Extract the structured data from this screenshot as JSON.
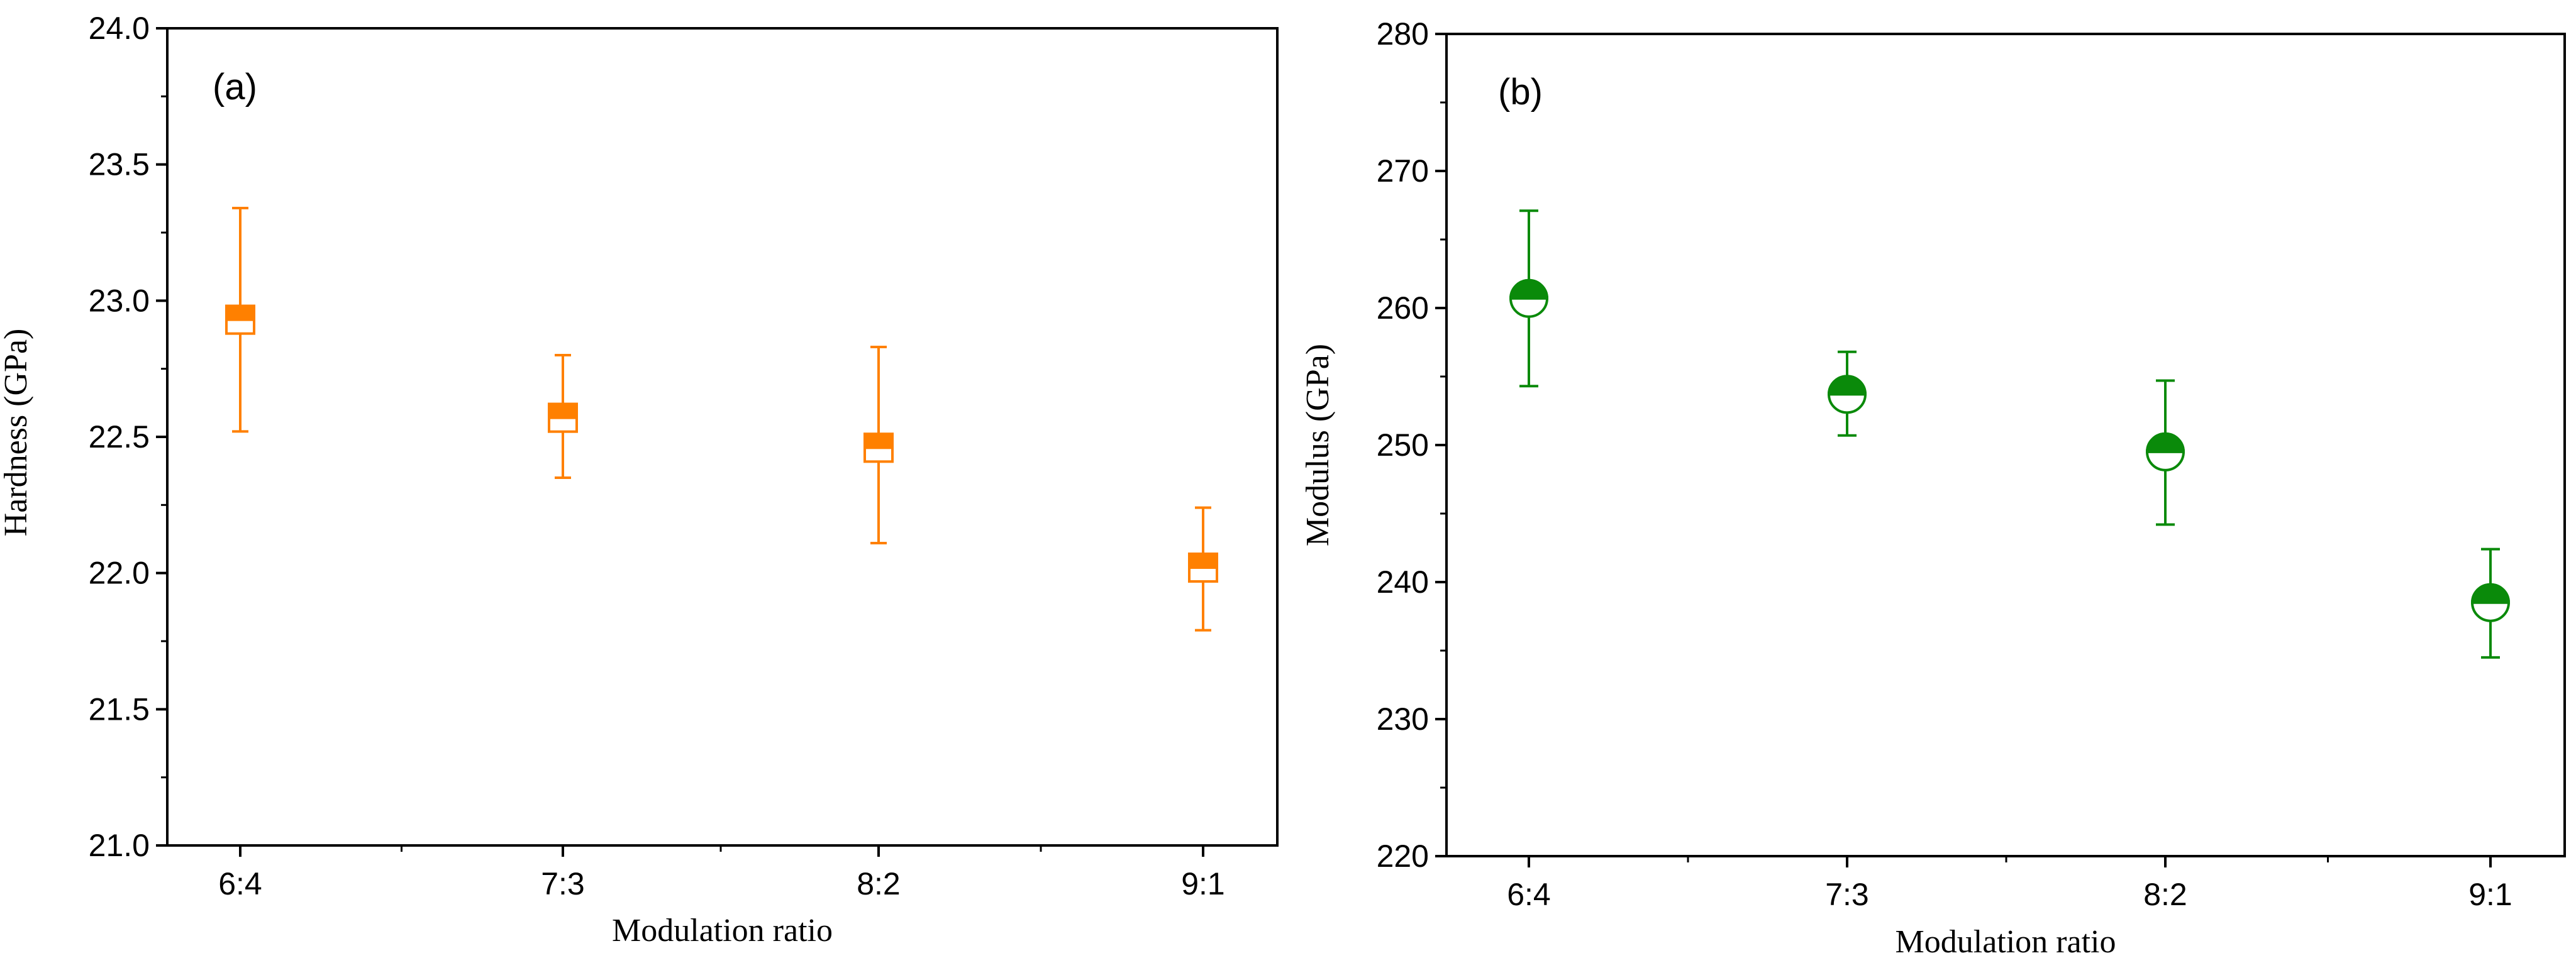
{
  "chart_data": [
    {
      "type": "scatter",
      "panel_label": "(a)",
      "title": "",
      "xlabel": "Modulation ratio",
      "ylabel": "Hardness (GPa)",
      "categories": [
        "6:4",
        "7:3",
        "8:2",
        "9:1"
      ],
      "ylim": [
        21.0,
        24.0
      ],
      "yticks": [
        21.0,
        21.5,
        22.0,
        22.5,
        23.0,
        23.5,
        24.0
      ],
      "ytick_labels": [
        "21.0",
        "21.5",
        "22.0",
        "22.5",
        "23.0",
        "23.5",
        "24.0"
      ],
      "marker": "half-filled-square",
      "color": "#ff8000",
      "series": [
        {
          "name": "Hardness",
          "values": [
            22.93,
            22.57,
            22.46,
            22.02
          ],
          "err_low": [
            22.52,
            22.35,
            22.11,
            21.79
          ],
          "err_high": [
            23.34,
            22.8,
            22.83,
            22.24
          ]
        }
      ],
      "grid": false,
      "legend": "none"
    },
    {
      "type": "scatter",
      "panel_label": "(b)",
      "title": "",
      "xlabel": "Modulation ratio",
      "ylabel": "Modulus (GPa)",
      "categories": [
        "6:4",
        "7:3",
        "8:2",
        "9:1"
      ],
      "ylim": [
        220,
        280
      ],
      "yticks": [
        220,
        230,
        240,
        250,
        260,
        270,
        280
      ],
      "ytick_labels": [
        "220",
        "230",
        "240",
        "250",
        "260",
        "270",
        "280"
      ],
      "marker": "half-filled-circle",
      "color": "#0a8a0a",
      "series": [
        {
          "name": "Modulus",
          "values": [
            260.7,
            253.7,
            249.5,
            238.5
          ],
          "err_low": [
            254.3,
            250.7,
            244.2,
            234.5
          ],
          "err_high": [
            267.1,
            256.8,
            254.7,
            242.4
          ]
        }
      ],
      "grid": false,
      "legend": "none"
    }
  ]
}
